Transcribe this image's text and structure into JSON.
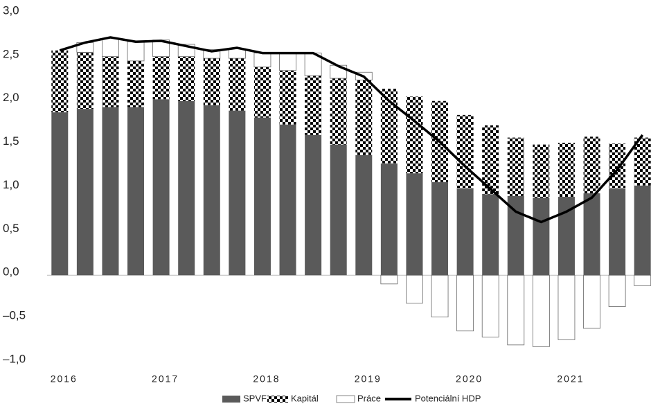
{
  "chart_data": {
    "type": "bar",
    "stacked": true,
    "categories": [
      "2016",
      null,
      null,
      null,
      "2017",
      null,
      null,
      null,
      "2018",
      null,
      null,
      null,
      "2019",
      null,
      null,
      null,
      "2020",
      null,
      null,
      null,
      "2021",
      null,
      null,
      null
    ],
    "series": [
      {
        "name": "SPVF",
        "color": "#5a5a5a",
        "values": [
          1.87,
          1.91,
          1.93,
          1.93,
          2.02,
          2.0,
          1.95,
          1.89,
          1.81,
          1.73,
          1.61,
          1.5,
          1.38,
          1.28,
          1.17,
          1.07,
          0.99,
          0.93,
          0.91,
          0.89,
          0.9,
          0.94,
          0.99,
          1.03
        ]
      },
      {
        "name": "Kapitál",
        "color": "#000000",
        "values": [
          0.71,
          0.65,
          0.58,
          0.53,
          0.49,
          0.51,
          0.54,
          0.6,
          0.58,
          0.62,
          0.68,
          0.76,
          0.86,
          0.86,
          0.88,
          0.93,
          0.85,
          0.79,
          0.67,
          0.61,
          0.62,
          0.65,
          0.52,
          0.55
        ]
      },
      {
        "name": "Práce",
        "color": "#ffffff",
        "values": [
          0.0,
          0.11,
          0.21,
          0.22,
          0.19,
          0.14,
          0.1,
          0.11,
          0.16,
          0.2,
          0.26,
          0.15,
          0.09,
          -0.1,
          -0.32,
          -0.48,
          -0.64,
          -0.71,
          -0.8,
          -0.82,
          -0.74,
          -0.61,
          -0.36,
          -0.12
        ]
      },
      {
        "name": "Potenciální HDP",
        "type": "line",
        "color": "#000000",
        "values": [
          2.58,
          2.67,
          2.73,
          2.68,
          2.69,
          2.63,
          2.57,
          2.61,
          2.55,
          2.55,
          2.55,
          2.4,
          2.28,
          2.0,
          1.77,
          1.53,
          1.25,
          0.99,
          0.73,
          0.61,
          0.73,
          0.89,
          1.21,
          1.61
        ]
      }
    ],
    "ylim": [
      -1.0,
      3.0
    ],
    "yticks": [
      {
        "value": 3.0,
        "label": "3,0"
      },
      {
        "value": 2.5,
        "label": "2,5"
      },
      {
        "value": 2.0,
        "label": "2,0"
      },
      {
        "value": 1.5,
        "label": "1,5"
      },
      {
        "value": 1.0,
        "label": "1,0"
      },
      {
        "value": 0.5,
        "label": "0,5"
      },
      {
        "value": 0.0,
        "label": "0,0"
      },
      {
        "value": -0.5,
        "label": "–0,5"
      },
      {
        "value": -1.0,
        "label": "–1,0"
      }
    ],
    "grid": false,
    "legend": "bottom"
  }
}
